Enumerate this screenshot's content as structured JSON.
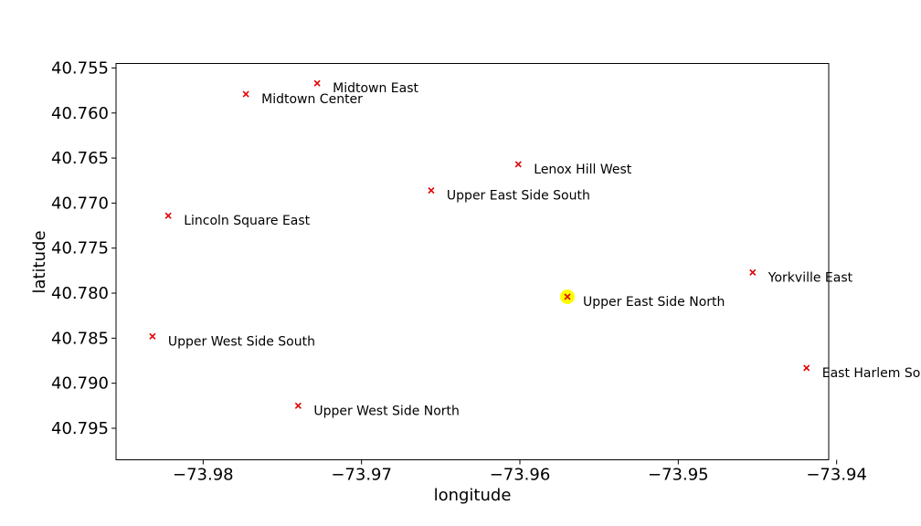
{
  "chart_data": {
    "type": "scatter",
    "title": "",
    "xlabel": "longitude",
    "ylabel": "latitude",
    "xlim": [
      -73.9855,
      -73.9405
    ],
    "ylim": [
      40.7985,
      40.7545
    ],
    "y_inverted": true,
    "grid": false,
    "xticks": [
      -73.98,
      -73.97,
      -73.96,
      -73.95,
      -73.94
    ],
    "xtick_labels": [
      "−73.98",
      "−73.97",
      "−73.96",
      "−73.95",
      "−73.94"
    ],
    "yticks": [
      40.755,
      40.76,
      40.765,
      40.77,
      40.775,
      40.78,
      40.785,
      40.79,
      40.795
    ],
    "ytick_labels": [
      "40.755",
      "40.760",
      "40.765",
      "40.770",
      "40.775",
      "40.780",
      "40.785",
      "40.790",
      "40.795"
    ],
    "marker_color": "#e00000",
    "highlight_color": "#ffff00",
    "points": [
      {
        "name": "Midtown East",
        "x": -73.9728,
        "y": 40.7567,
        "highlight": false
      },
      {
        "name": "Midtown Center",
        "x": -73.9773,
        "y": 40.7579,
        "highlight": false
      },
      {
        "name": "Lenox Hill West",
        "x": -73.9601,
        "y": 40.7657,
        "highlight": false
      },
      {
        "name": "Upper East Side South",
        "x": -73.9656,
        "y": 40.7686,
        "highlight": false
      },
      {
        "name": "Lincoln Square East",
        "x": -73.9822,
        "y": 40.7714,
        "highlight": false
      },
      {
        "name": "Yorkville East",
        "x": -73.9453,
        "y": 40.7777,
        "highlight": false
      },
      {
        "name": "Upper East Side North",
        "x": -73.957,
        "y": 40.7804,
        "highlight": true
      },
      {
        "name": "Upper West Side South",
        "x": -73.9832,
        "y": 40.7848,
        "highlight": false
      },
      {
        "name": "East Harlem South",
        "x": -73.9419,
        "y": 40.7883,
        "highlight": false
      },
      {
        "name": "Upper West Side North",
        "x": -73.974,
        "y": 40.7925,
        "highlight": false
      }
    ]
  }
}
